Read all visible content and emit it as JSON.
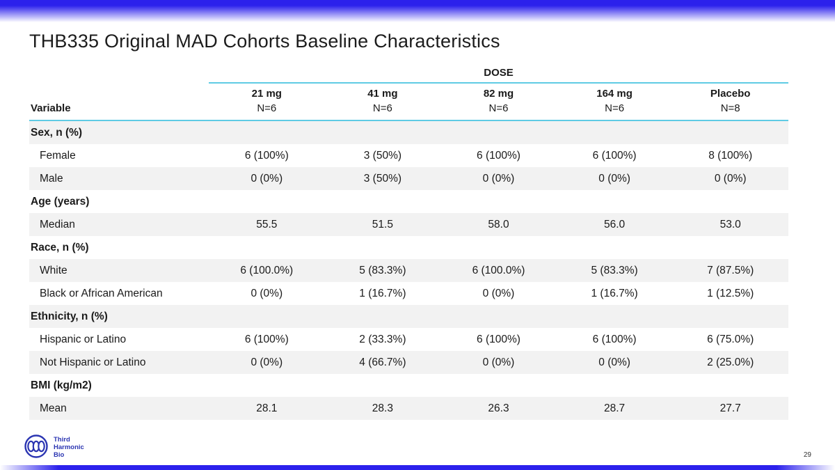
{
  "slide": {
    "title": "THB335 Original MAD Cohorts Baseline Characteristics",
    "page_number": "29"
  },
  "logo": {
    "name": "third-harmonic-bio",
    "lines": [
      "Third",
      "Harmonic",
      "Bio"
    ]
  },
  "colors": {
    "top_bar_blue": "#2c21ec",
    "accent_cyan": "#5fcbe4",
    "row_shade_gray": "#f2f2f2",
    "logo_blue": "#2b35b2"
  },
  "table": {
    "dose_header": "DOSE",
    "variable_header": "Variable",
    "columns": [
      {
        "dose": "21 mg",
        "n": "N=6"
      },
      {
        "dose": "41 mg",
        "n": "N=6"
      },
      {
        "dose": "82 mg",
        "n": "N=6"
      },
      {
        "dose": "164 mg",
        "n": "N=6"
      },
      {
        "dose": "Placebo",
        "n": "N=8"
      }
    ],
    "rows": [
      {
        "label": "Sex, n (%)",
        "type": "category",
        "values": [
          "",
          "",
          "",
          "",
          ""
        ]
      },
      {
        "label": "Female",
        "type": "data",
        "values": [
          "6 (100%)",
          "3 (50%)",
          "6 (100%)",
          "6 (100%)",
          "8 (100%)"
        ]
      },
      {
        "label": "Male",
        "type": "data",
        "values": [
          "0 (0%)",
          "3 (50%)",
          "0 (0%)",
          "0 (0%)",
          "0 (0%)"
        ]
      },
      {
        "label": "Age (years)",
        "type": "category",
        "values": [
          "",
          "",
          "",
          "",
          ""
        ]
      },
      {
        "label": "Median",
        "type": "data",
        "values": [
          "55.5",
          "51.5",
          "58.0",
          "56.0",
          "53.0"
        ]
      },
      {
        "label": "Race, n (%)",
        "type": "category",
        "values": [
          "",
          "",
          "",
          "",
          ""
        ]
      },
      {
        "label": "White",
        "type": "data",
        "values": [
          "6 (100.0%)",
          "5 (83.3%)",
          "6 (100.0%)",
          "5 (83.3%)",
          "7 (87.5%)"
        ]
      },
      {
        "label": "Black or African American",
        "type": "data",
        "values": [
          "0 (0%)",
          "1 (16.7%)",
          "0 (0%)",
          "1 (16.7%)",
          "1 (12.5%)"
        ]
      },
      {
        "label": "Ethnicity, n (%)",
        "type": "category",
        "values": [
          "",
          "",
          "",
          "",
          ""
        ]
      },
      {
        "label": "Hispanic or Latino",
        "type": "data",
        "values": [
          "6 (100%)",
          "2 (33.3%)",
          "6 (100%)",
          "6 (100%)",
          "6 (75.0%)"
        ]
      },
      {
        "label": "Not Hispanic or Latino",
        "type": "data",
        "values": [
          "0 (0%)",
          "4 (66.7%)",
          "0 (0%)",
          "0 (0%)",
          "2 (25.0%)"
        ]
      },
      {
        "label": "BMI (kg/m2)",
        "type": "category",
        "values": [
          "",
          "",
          "",
          "",
          ""
        ]
      },
      {
        "label": "Mean",
        "type": "data",
        "values": [
          "28.1",
          "28.3",
          "26.3",
          "28.7",
          "27.7"
        ]
      }
    ]
  }
}
